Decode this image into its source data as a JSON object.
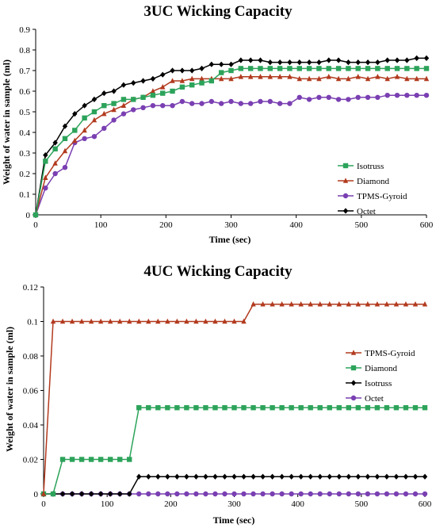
{
  "chart_data": [
    {
      "type": "line",
      "title": "3UC Wicking Capacity",
      "xlabel": "Time (sec)",
      "ylabel": "Weight of water in sample (ml)",
      "xlim": [
        0,
        600
      ],
      "ylim": [
        0,
        0.9
      ],
      "xticks": [
        "0",
        "100",
        "200",
        "300",
        "400",
        "500",
        "600"
      ],
      "yticks": [
        "0",
        "0.1",
        "0.2",
        "0.3",
        "0.4",
        "0.5",
        "0.6",
        "0.7",
        "0.8",
        "0.9"
      ],
      "grid": false,
      "legend": "right",
      "series": [
        {
          "name": "Isotruss",
          "color": "#2ca35a",
          "marker": "square",
          "x": [
            0,
            15,
            30,
            45,
            60,
            75,
            90,
            105,
            120,
            135,
            150,
            165,
            180,
            195,
            210,
            225,
            240,
            255,
            270,
            285,
            300,
            315,
            330,
            345,
            360,
            375,
            390,
            405,
            420,
            435,
            450,
            465,
            480,
            495,
            510,
            525,
            540,
            555,
            570,
            585,
            600
          ],
          "y": [
            0,
            0.26,
            0.32,
            0.37,
            0.41,
            0.47,
            0.5,
            0.53,
            0.54,
            0.56,
            0.56,
            0.57,
            0.58,
            0.59,
            0.6,
            0.62,
            0.63,
            0.64,
            0.65,
            0.69,
            0.7,
            0.71,
            0.71,
            0.71,
            0.71,
            0.71,
            0.71,
            0.71,
            0.71,
            0.71,
            0.71,
            0.71,
            0.71,
            0.71,
            0.71,
            0.71,
            0.71,
            0.71,
            0.71,
            0.71,
            0.71
          ]
        },
        {
          "name": "Diamond",
          "color": "#b23a1e",
          "marker": "triangle",
          "x": [
            0,
            15,
            30,
            45,
            60,
            75,
            90,
            105,
            120,
            135,
            150,
            165,
            180,
            195,
            210,
            225,
            240,
            255,
            270,
            285,
            300,
            315,
            330,
            345,
            360,
            375,
            390,
            405,
            420,
            435,
            450,
            465,
            480,
            495,
            510,
            525,
            540,
            555,
            570,
            585,
            600
          ],
          "y": [
            0,
            0.18,
            0.25,
            0.31,
            0.36,
            0.41,
            0.46,
            0.49,
            0.51,
            0.53,
            0.56,
            0.57,
            0.6,
            0.62,
            0.65,
            0.65,
            0.66,
            0.66,
            0.66,
            0.66,
            0.66,
            0.67,
            0.67,
            0.67,
            0.67,
            0.67,
            0.67,
            0.66,
            0.66,
            0.66,
            0.67,
            0.66,
            0.66,
            0.67,
            0.66,
            0.67,
            0.66,
            0.67,
            0.66,
            0.66,
            0.66
          ]
        },
        {
          "name": "TPMS-Gyroid",
          "color": "#7a3fb2",
          "marker": "circle",
          "x": [
            0,
            15,
            30,
            45,
            60,
            75,
            90,
            105,
            120,
            135,
            150,
            165,
            180,
            195,
            210,
            225,
            240,
            255,
            270,
            285,
            300,
            315,
            330,
            345,
            360,
            375,
            390,
            405,
            420,
            435,
            450,
            465,
            480,
            495,
            510,
            525,
            540,
            555,
            570,
            585,
            600
          ],
          "y": [
            0,
            0.13,
            0.2,
            0.23,
            0.35,
            0.37,
            0.38,
            0.42,
            0.46,
            0.49,
            0.51,
            0.52,
            0.53,
            0.53,
            0.53,
            0.55,
            0.54,
            0.54,
            0.55,
            0.54,
            0.55,
            0.54,
            0.54,
            0.55,
            0.55,
            0.54,
            0.54,
            0.57,
            0.56,
            0.57,
            0.57,
            0.56,
            0.56,
            0.57,
            0.57,
            0.57,
            0.58,
            0.58,
            0.58,
            0.58,
            0.58
          ]
        },
        {
          "name": "Octet",
          "color": "#000000",
          "marker": "diamond",
          "x": [
            0,
            15,
            30,
            45,
            60,
            75,
            90,
            105,
            120,
            135,
            150,
            165,
            180,
            195,
            210,
            225,
            240,
            255,
            270,
            285,
            300,
            315,
            330,
            345,
            360,
            375,
            390,
            405,
            420,
            435,
            450,
            465,
            480,
            495,
            510,
            525,
            540,
            555,
            570,
            585,
            600
          ],
          "y": [
            0,
            0.29,
            0.35,
            0.43,
            0.49,
            0.53,
            0.56,
            0.59,
            0.6,
            0.63,
            0.64,
            0.65,
            0.66,
            0.68,
            0.7,
            0.7,
            0.7,
            0.71,
            0.73,
            0.73,
            0.73,
            0.75,
            0.75,
            0.75,
            0.74,
            0.74,
            0.74,
            0.74,
            0.74,
            0.74,
            0.75,
            0.75,
            0.74,
            0.74,
            0.74,
            0.74,
            0.75,
            0.75,
            0.75,
            0.76,
            0.76
          ]
        }
      ]
    },
    {
      "type": "line",
      "title": "4UC Wicking Capacity",
      "xlabel": "Time (sec)",
      "ylabel": "Weight of water in sample (ml)",
      "xlim": [
        0,
        600
      ],
      "ylim": [
        0,
        0.12
      ],
      "xticks": [
        "0",
        "100",
        "200",
        "300",
        "400",
        "500",
        "600"
      ],
      "yticks": [
        "0",
        "0.02",
        "0.04",
        "0.06",
        "0.08",
        "0.1",
        "0.12"
      ],
      "grid": false,
      "legend": "right",
      "series": [
        {
          "name": "TPMS-Gyroid",
          "color": "#b23a1e",
          "marker": "triangle",
          "x": [
            0,
            15,
            30,
            45,
            60,
            75,
            90,
            105,
            120,
            135,
            150,
            165,
            180,
            195,
            210,
            225,
            240,
            255,
            270,
            285,
            300,
            315,
            330,
            345,
            360,
            375,
            390,
            405,
            420,
            435,
            450,
            465,
            480,
            495,
            510,
            525,
            540,
            555,
            570,
            585,
            600
          ],
          "y": [
            0,
            0.1,
            0.1,
            0.1,
            0.1,
            0.1,
            0.1,
            0.1,
            0.1,
            0.1,
            0.1,
            0.1,
            0.1,
            0.1,
            0.1,
            0.1,
            0.1,
            0.1,
            0.1,
            0.1,
            0.1,
            0.1,
            0.11,
            0.11,
            0.11,
            0.11,
            0.11,
            0.11,
            0.11,
            0.11,
            0.11,
            0.11,
            0.11,
            0.11,
            0.11,
            0.11,
            0.11,
            0.11,
            0.11,
            0.11,
            0.11
          ]
        },
        {
          "name": "Diamond",
          "color": "#2ca35a",
          "marker": "square",
          "x": [
            0,
            15,
            30,
            45,
            60,
            75,
            90,
            105,
            120,
            135,
            150,
            165,
            180,
            195,
            210,
            225,
            240,
            255,
            270,
            285,
            300,
            315,
            330,
            345,
            360,
            375,
            390,
            405,
            420,
            435,
            450,
            465,
            480,
            495,
            510,
            525,
            540,
            555,
            570,
            585,
            600
          ],
          "y": [
            0,
            0,
            0.02,
            0.02,
            0.02,
            0.02,
            0.02,
            0.02,
            0.02,
            0.02,
            0.05,
            0.05,
            0.05,
            0.05,
            0.05,
            0.05,
            0.05,
            0.05,
            0.05,
            0.05,
            0.05,
            0.05,
            0.05,
            0.05,
            0.05,
            0.05,
            0.05,
            0.05,
            0.05,
            0.05,
            0.05,
            0.05,
            0.05,
            0.05,
            0.05,
            0.05,
            0.05,
            0.05,
            0.05,
            0.05,
            0.05
          ]
        },
        {
          "name": "Isotruss",
          "color": "#000000",
          "marker": "diamond",
          "x": [
            0,
            15,
            30,
            45,
            60,
            75,
            90,
            105,
            120,
            135,
            150,
            165,
            180,
            195,
            210,
            225,
            240,
            255,
            270,
            285,
            300,
            315,
            330,
            345,
            360,
            375,
            390,
            405,
            420,
            435,
            450,
            465,
            480,
            495,
            510,
            525,
            540,
            555,
            570,
            585,
            600
          ],
          "y": [
            0,
            0,
            0,
            0,
            0,
            0,
            0,
            0,
            0,
            0,
            0.01,
            0.01,
            0.01,
            0.01,
            0.01,
            0.01,
            0.01,
            0.01,
            0.01,
            0.01,
            0.01,
            0.01,
            0.01,
            0.01,
            0.01,
            0.01,
            0.01,
            0.01,
            0.01,
            0.01,
            0.01,
            0.01,
            0.01,
            0.01,
            0.01,
            0.01,
            0.01,
            0.01,
            0.01,
            0.01,
            0.01
          ]
        },
        {
          "name": "Octet",
          "color": "#7a3fb2",
          "marker": "circle",
          "x": [
            0,
            15,
            30,
            45,
            60,
            75,
            90,
            105,
            120,
            135,
            150,
            165,
            180,
            195,
            210,
            225,
            240,
            255,
            270,
            285,
            300,
            315,
            330,
            345,
            360,
            375,
            390,
            405,
            420,
            435,
            450,
            465,
            480,
            495,
            510,
            525,
            540,
            555,
            570,
            585,
            600
          ],
          "y": [
            0,
            0,
            0,
            0,
            0,
            0,
            0,
            0,
            0,
            0,
            0,
            0,
            0,
            0,
            0,
            0,
            0,
            0,
            0,
            0,
            0,
            0,
            0,
            0,
            0,
            0,
            0,
            0,
            0,
            0,
            0,
            0,
            0,
            0,
            0,
            0,
            0,
            0,
            0,
            0,
            0
          ]
        }
      ]
    }
  ]
}
